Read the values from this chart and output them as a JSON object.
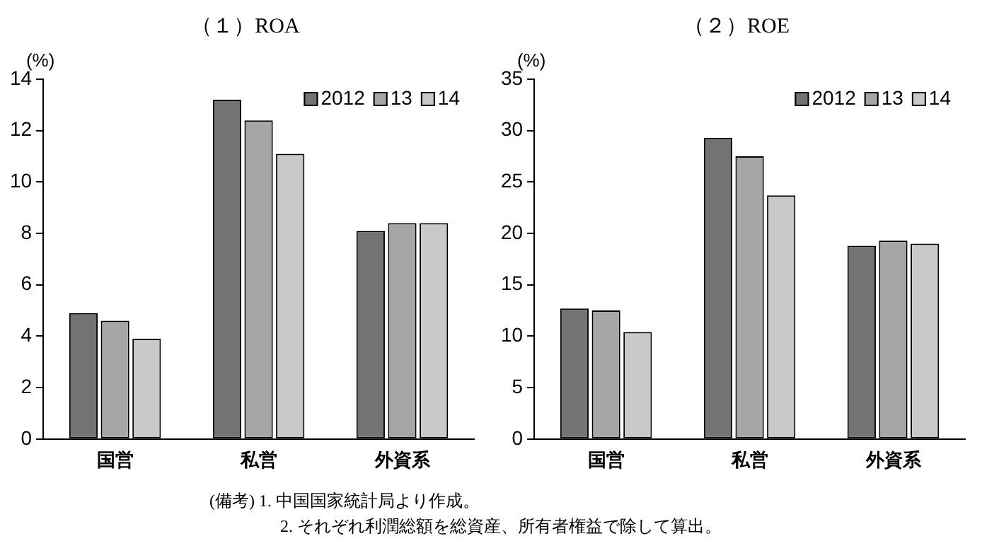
{
  "chart_data": [
    {
      "type": "bar",
      "title": "（１）ROA",
      "ylabel": "(%)",
      "categories": [
        "国営",
        "私営",
        "外資系"
      ],
      "series": [
        {
          "name": "2012",
          "color": "#737373",
          "values": [
            4.9,
            13.2,
            8.1
          ]
        },
        {
          "name": "13",
          "color": "#a6a6a6",
          "values": [
            4.6,
            12.4,
            8.4
          ]
        },
        {
          "name": "14",
          "color": "#c9c9c9",
          "values": [
            3.9,
            11.1,
            8.4
          ]
        }
      ],
      "ylim": [
        0,
        14
      ],
      "yticks": [
        0,
        2,
        4,
        6,
        8,
        10,
        12,
        14
      ],
      "grid": false,
      "legend": "top right",
      "annotations": [
        "(備考) 1. 中国国家統計局より作成。",
        "2. それぞれ利潤総額を総資産、所有者権益で除して算出。"
      ]
    },
    {
      "type": "bar",
      "title": "（２）ROE",
      "ylabel": "(%)",
      "categories": [
        "国営",
        "私営",
        "外資系"
      ],
      "series": [
        {
          "name": "2012",
          "color": "#737373",
          "values": [
            12.7,
            29.3,
            18.8
          ]
        },
        {
          "name": "13",
          "color": "#a6a6a6",
          "values": [
            12.5,
            27.5,
            19.3
          ]
        },
        {
          "name": "14",
          "color": "#c9c9c9",
          "values": [
            10.4,
            23.7,
            19.0
          ]
        }
      ],
      "ylim": [
        0,
        35
      ],
      "yticks": [
        0,
        5,
        10,
        15,
        20,
        25,
        30,
        35
      ],
      "grid": false,
      "legend": "top right"
    }
  ]
}
